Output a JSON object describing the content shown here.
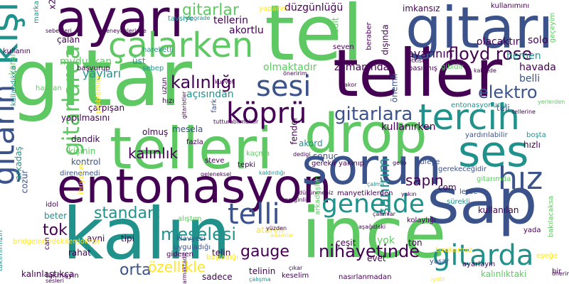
{
  "palette": {
    "dark_purple": "#440154",
    "indigo": "#3b528b",
    "teal": "#21918c",
    "green": "#5ec962",
    "yellow": "#fde725"
  },
  "words": [
    {
      "text": "gitar",
      "color": "#5ec962"
    },
    {
      "text": "tel",
      "color": "#5ec962"
    },
    {
      "text": "teller",
      "color": "#440154"
    },
    {
      "text": "ince",
      "color": "#5ec962"
    },
    {
      "text": "kalın",
      "color": "#21918c"
    },
    {
      "text": "ayarı",
      "color": "#440154"
    },
    {
      "text": "gitarı",
      "color": "#3b528b"
    },
    {
      "text": "telleri",
      "color": "#5ec962"
    },
    {
      "text": "entonasyon",
      "color": "#440154"
    },
    {
      "text": "sap",
      "color": "#3b528b"
    },
    {
      "text": "drop",
      "color": "#5ec962"
    },
    {
      "text": "sorun",
      "color": "#3b528b"
    },
    {
      "text": "ses",
      "color": "#21918c"
    },
    {
      "text": "kişi",
      "color": "#21918c"
    },
    {
      "text": "gitarın",
      "color": "#3b528b"
    },
    {
      "text": "tercih",
      "color": "#21918c"
    },
    {
      "text": "çalarken",
      "color": "#5ec962"
    },
    {
      "text": "hız",
      "color": "#3b528b"
    },
    {
      "text": "gitarda",
      "color": "#21918c"
    },
    {
      "text": "gitarlarda",
      "color": "#5ec962"
    },
    {
      "text": "genelde",
      "color": "#21918c"
    },
    {
      "text": "köprü",
      "color": "#440154"
    },
    {
      "text": "sesi",
      "color": "#3b528b"
    },
    {
      "text": "floyd rose",
      "color": "#440154"
    },
    {
      "text": "kalınlığı",
      "color": "#440154"
    },
    {
      "text": "gitarlar",
      "color": "#5ec962"
    },
    {
      "text": "gitarlara",
      "color": "#3b528b"
    },
    {
      "text": "elektro",
      "color": "#3b528b"
    },
    {
      "text": "telli",
      "color": "#3b528b"
    },
    {
      "text": "meselesi",
      "color": "#21918c"
    },
    {
      "text": "standart",
      "color": "#21918c"
    },
    {
      "text": "nihayetinde",
      "color": "#440154"
    },
    {
      "text": "orta",
      "color": "#3b528b"
    },
    {
      "text": "gauge",
      "color": "#440154"
    },
    {
      "text": "özellikle",
      "color": "#fde725"
    },
    {
      "text": "kalınlık",
      "color": "#440154"
    },
    {
      "text": "sanırım",
      "color": "#21918c"
    },
    {
      "text": "tok",
      "color": "#440154"
    },
    {
      "text": "sapın",
      "color": "#440154"
    },
    {
      "text": "düzgünlüğü",
      "color": "#440154"
    },
    {
      "text": "zamanında",
      "color": "#440154"
    },
    {
      "text": "olmaktadır",
      "color": "#5ec962"
    },
    {
      "text": "kullanırken",
      "color": "#440154"
    },
    {
      "text": "ayarının",
      "color": "#440154"
    },
    {
      "text": "tellerin",
      "color": "#440154"
    },
    {
      "text": "akortlu",
      "color": "#440154"
    },
    {
      "text": "mydukkan",
      "color": "#5ec962"
    },
    {
      "text": "yayları",
      "color": "#21918c"
    },
    {
      "text": "açısından",
      "color": "#21918c"
    },
    {
      "text": "havada",
      "color": "#440154"
    },
    {
      "text": "olacaktır",
      "color": "#440154"
    },
    {
      "text": "hemen",
      "color": "#21918c"
    },
    {
      "text": "solo",
      "color": "#440154"
    },
    {
      "text": "belli",
      "color": "#3b528b"
    },
    {
      "text": "çarpışan",
      "color": "#440154"
    },
    {
      "text": "yapılmasını",
      "color": "#440154"
    },
    {
      "text": "dandik",
      "color": "#440154"
    },
    {
      "text": "kişinin",
      "color": "#5ec962"
    },
    {
      "text": "kontrol",
      "color": "#3b528b"
    },
    {
      "text": "direnemedi",
      "color": "#3b528b"
    },
    {
      "text": "mesela",
      "color": "#3b528b"
    },
    {
      "text": "akord",
      "color": "#21918c"
    },
    {
      "text": "sonuç",
      "color": "#3b528b"
    },
    {
      "text": "hızlı",
      "color": "#440154"
    },
    {
      "text": "fender",
      "color": "#440154"
    },
    {
      "text": "sebep",
      "color": "#21918c"
    },
    {
      "text": "telin",
      "color": "#440154"
    },
    {
      "text": "bir",
      "color": "#440154"
    },
    {
      "text": "karar",
      "color": "#5ec962"
    },
    {
      "text": "kullanın",
      "color": "#440154"
    },
    {
      "text": "arkadaş",
      "color": "#21918c"
    },
    {
      "text": "cozur",
      "color": "#3b528b"
    },
    {
      "text": "beter",
      "color": "#21918c"
    },
    {
      "text": "idol",
      "color": "#440154"
    },
    {
      "text": "rahat",
      "color": "#440154"
    },
    {
      "text": "ayni",
      "color": "#440154"
    },
    {
      "text": "tipi",
      "color": "#440154"
    },
    {
      "text": "evet",
      "color": "#440154"
    },
    {
      "text": "ton",
      "color": "#440154"
    },
    {
      "text": "çeşit",
      "color": "#440154"
    },
    {
      "text": "yok",
      "color": "#5ec962"
    },
    {
      "text": "atarım",
      "color": "#fde725"
    },
    {
      "text": "kalınlaştıkça",
      "color": "#440154"
    },
    {
      "text": "sadece",
      "color": "#440154"
    },
    {
      "text": "telinin",
      "color": "#440154"
    },
    {
      "text": "keselim",
      "color": "#440154"
    },
    {
      "text": "kalınlıktaki",
      "color": "#5ec962"
    },
    {
      "text": "ayarlayın",
      "color": "#440154"
    },
    {
      "text": "yaşar",
      "color": "#3b528b"
    },
    {
      "text": "bırakamaz",
      "color": "#fde725"
    },
    {
      "text": "nasırlanmadan",
      "color": "#440154"
    },
    {
      "text": "bakılacaksa",
      "color": "#5ec962"
    },
    {
      "text": "eşeğe",
      "color": "#fde725"
    },
    {
      "text": "yada",
      "color": "#440154"
    },
    {
      "text": "lerde",
      "color": "#3b528b"
    },
    {
      "text": "sürekli",
      "color": "#21918c"
    },
    {
      "text": "kullanılan",
      "color": "#440154"
    },
    {
      "text": "gerekeceğidir",
      "color": "#3b528b"
    },
    {
      "text": "gitarımda",
      "color": "#5ec962"
    },
    {
      "text": "büfeye",
      "color": "#3b528b"
    },
    {
      "text": "com",
      "color": "#440154"
    },
    {
      "text": "yardırılabilir",
      "color": "#3b528b"
    },
    {
      "text": "boşta",
      "color": "#21918c"
    },
    {
      "text": "gerekir",
      "color": "#440154"
    },
    {
      "text": "yakınıp",
      "color": "#440154"
    },
    {
      "text": "tepki",
      "color": "#440154"
    },
    {
      "text": "steve",
      "color": "#440154"
    },
    {
      "text": "kaçma",
      "color": "#5ec962"
    },
    {
      "text": "fazla",
      "color": "#440154"
    },
    {
      "text": "olmuş",
      "color": "#440154"
    },
    {
      "text": "hızı",
      "color": "#440154"
    },
    {
      "text": "fark",
      "color": "#3b528b"
    },
    {
      "text": "uzun",
      "color": "#440154"
    },
    {
      "text": "hapcan",
      "color": "#5ec962"
    },
    {
      "text": "üst",
      "color": "#21918c"
    },
    {
      "text": "başvurup",
      "color": "#440154"
    },
    {
      "text": "çalan",
      "color": "#440154"
    },
    {
      "text": "marka",
      "color": "#21918c"
    },
    {
      "text": "edit",
      "color": "#5ec962"
    },
    {
      "text": "seven",
      "color": "#440154"
    },
    {
      "text": "beraber",
      "color": "#440154"
    },
    {
      "text": "dışında",
      "color": "#440154"
    },
    {
      "text": "imkansız",
      "color": "#440154"
    },
    {
      "text": "kullanımını",
      "color": "#440154"
    },
    {
      "text": "geçeyim",
      "color": "#5ec962"
    },
    {
      "text": "teli",
      "color": "#3b528b"
    },
    {
      "text": "entonasyonunu",
      "color": "#21918c"
    },
    {
      "text": "önemli",
      "color": "#3b528b"
    },
    {
      "text": "hareketli",
      "color": "#21918c"
    },
    {
      "text": "yaparım",
      "color": "#fde725"
    },
    {
      "text": "klavyesi",
      "color": "#3b528b"
    },
    {
      "text": "uyguladığı",
      "color": "#3b528b"
    },
    {
      "text": "gideren",
      "color": "#440154"
    },
    {
      "text": "başladığı",
      "color": "#fde725"
    },
    {
      "text": "alıştım",
      "color": "#5ec962"
    },
    {
      "text": "ihtiyacım",
      "color": "#fde725"
    },
    {
      "text": "problemler",
      "color": "#fde725"
    },
    {
      "text": "kullandıkça",
      "color": "#21918c"
    },
    {
      "text": "takimimizin",
      "color": "#21918c"
    },
    {
      "text": "tavsiye",
      "color": "#21918c"
    },
    {
      "text": "upgrade",
      "color": "#21918c"
    },
    {
      "text": "sebepleri",
      "color": "#440154"
    },
    {
      "text": "deneyimlerince",
      "color": "#440154"
    },
    {
      "text": "x2",
      "color": "#440154"
    },
    {
      "text": "gitaristler",
      "color": "#440154"
    },
    {
      "text": "kuvvet",
      "color": "#440154"
    },
    {
      "text": "akor",
      "color": "#440154"
    },
    {
      "text": "öneririm",
      "color": "#440154"
    },
    {
      "text": "tutturabilmektir",
      "color": "#440154"
    },
    {
      "text": "geleneksel",
      "color": "#440154"
    },
    {
      "text": "tellerine",
      "color": "#440154"
    },
    {
      "text": "yerlerden",
      "color": "#5ec962"
    },
    {
      "text": "kaldırdığı",
      "color": "#21918c"
    },
    {
      "text": "gelio",
      "color": "#440154"
    },
    {
      "text": "çalma",
      "color": "#21918c"
    },
    {
      "text": "yakın",
      "color": "#440154"
    },
    {
      "text": "dedigi",
      "color": "#440154"
    },
    {
      "text": "manyetiklerden",
      "color": "#440154"
    },
    {
      "text": "düşünmeniz",
      "color": "#440154"
    },
    {
      "text": "arkadaşları",
      "color": "#5ec962"
    },
    {
      "text": "etkisiz",
      "color": "#440154"
    },
    {
      "text": "kalitede",
      "color": "#440154"
    },
    {
      "text": "gibidir",
      "color": "#5ec962"
    },
    {
      "text": "basılmış",
      "color": "#440154"
    },
    {
      "text": "gerginliği",
      "color": "#440154"
    },
    {
      "text": "aşağıdaki",
      "color": "#440154"
    },
    {
      "text": "çalanlar",
      "color": "#440154"
    },
    {
      "text": "kolaylığı",
      "color": "#440154"
    },
    {
      "text": "çıkar",
      "color": "#440154"
    },
    {
      "text": "yüzden",
      "color": "#440154"
    },
    {
      "text": "adamlar",
      "color": "#fde725"
    },
    {
      "text": "armaktadır",
      "color": "#440154"
    },
    {
      "text": "çalışma",
      "color": "#21918c"
    },
    {
      "text": "takmayın",
      "color": "#440154"
    },
    {
      "text": "sesleri",
      "color": "#440154"
    },
    {
      "text": "bridgeinrindekilerdolinor",
      "color": "#fde725"
    },
    {
      "text": "can",
      "color": "#440154"
    },
    {
      "text": "iyidir",
      "color": "#fde725"
    },
    {
      "text": "önerim",
      "color": "#440154"
    },
    {
      "text": "birdo",
      "color": "#440154"
    }
  ]
}
